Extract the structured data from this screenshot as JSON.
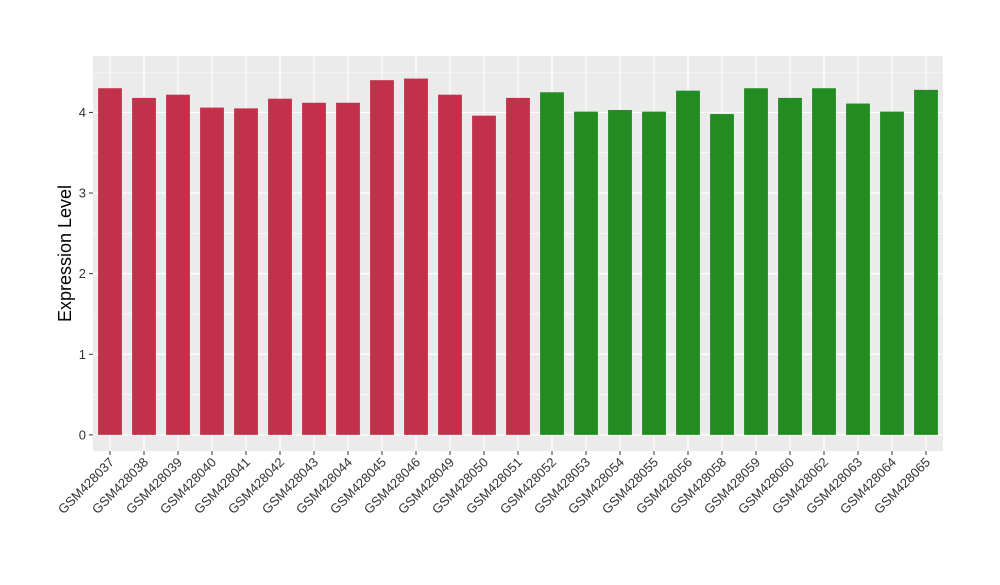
{
  "chart_data": {
    "type": "bar",
    "title": "",
    "xlabel": "",
    "ylabel": "Expression Level",
    "ylim": [
      -0.2,
      4.7
    ],
    "yticks": [
      0,
      1,
      2,
      3,
      4
    ],
    "grid": true,
    "legend": "none",
    "categories": [
      "GSM428037",
      "GSM428038",
      "GSM428039",
      "GSM428040",
      "GSM428041",
      "GSM428042",
      "GSM428043",
      "GSM428044",
      "GSM428045",
      "GSM428046",
      "GSM428049",
      "GSM428050",
      "GSM428051",
      "GSM428052",
      "GSM428053",
      "GSM428054",
      "GSM428055",
      "GSM428056",
      "GSM428058",
      "GSM428059",
      "GSM428060",
      "GSM428062",
      "GSM428063",
      "GSM428064",
      "GSM428065"
    ],
    "values": [
      4.3,
      4.18,
      4.22,
      4.06,
      4.05,
      4.17,
      4.12,
      4.12,
      4.4,
      4.42,
      4.22,
      3.96,
      4.18,
      4.25,
      4.01,
      4.03,
      4.01,
      4.27,
      3.98,
      4.3,
      4.18,
      4.3,
      4.11,
      4.01,
      4.28
    ],
    "groups": [
      "a",
      "a",
      "a",
      "a",
      "a",
      "a",
      "a",
      "a",
      "a",
      "a",
      "a",
      "a",
      "a",
      "b",
      "b",
      "b",
      "b",
      "b",
      "b",
      "b",
      "b",
      "b",
      "b",
      "b",
      "b"
    ],
    "group_colors": {
      "a": "#C3304A",
      "b": "#228B22"
    },
    "panel_color": "#EBEBEB",
    "grid_color": "#FFFFFF"
  }
}
